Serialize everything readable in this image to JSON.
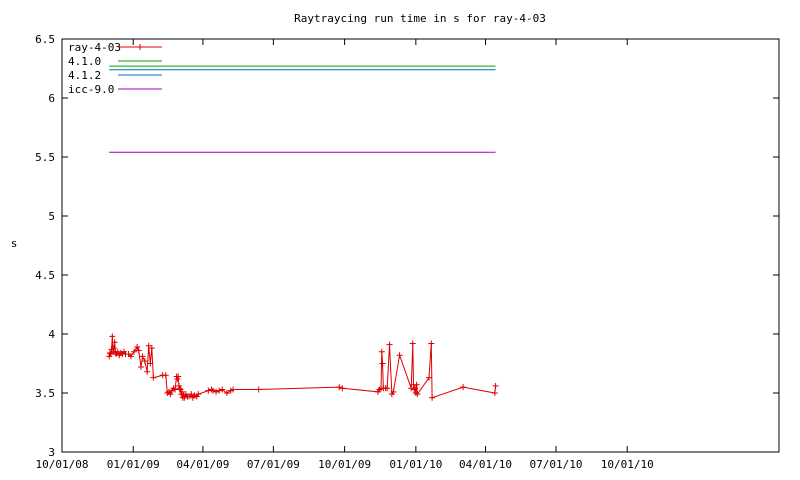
{
  "chart_data": {
    "type": "line",
    "title": "Raytraycing run time in s for ray-4-03",
    "xlabel": "",
    "ylabel": "s",
    "xlim": [
      "2008-10-01",
      "2011-04-15"
    ],
    "ylim": [
      3,
      6.5
    ],
    "grid": false,
    "legend_position": "top-left",
    "x_ticks": [
      "10/01/08",
      "01/01/09",
      "04/01/09",
      "07/01/09",
      "10/01/09",
      "01/01/10",
      "04/01/10",
      "07/01/10",
      "10/01/10"
    ],
    "x_tick_dates": [
      "2008-10-01",
      "2009-01-01",
      "2009-04-01",
      "2009-07-01",
      "2009-10-01",
      "2010-01-01",
      "2010-04-01",
      "2010-07-01",
      "2010-10-01"
    ],
    "y_ticks": [
      "3",
      "3.5",
      "4",
      "4.5",
      "5",
      "5.5",
      "6",
      "6.5"
    ],
    "series": [
      {
        "name": "ray-4-03",
        "color": "#dd0000",
        "style": "line+plus-markers",
        "points": [
          [
            "2008-12-01",
            3.81
          ],
          [
            "2008-12-02",
            3.84
          ],
          [
            "2008-12-03",
            3.83
          ],
          [
            "2008-12-04",
            3.87
          ],
          [
            "2008-12-05",
            3.98
          ],
          [
            "2008-12-06",
            3.85
          ],
          [
            "2008-12-07",
            3.88
          ],
          [
            "2008-12-08",
            3.93
          ],
          [
            "2008-12-09",
            3.84
          ],
          [
            "2008-12-10",
            3.83
          ],
          [
            "2008-12-12",
            3.85
          ],
          [
            "2008-12-14",
            3.82
          ],
          [
            "2008-12-16",
            3.84
          ],
          [
            "2008-12-18",
            3.83
          ],
          [
            "2008-12-20",
            3.85
          ],
          [
            "2008-12-22",
            3.83
          ],
          [
            "2008-12-26",
            3.83
          ],
          [
            "2008-12-29",
            3.81
          ],
          [
            "2009-01-02",
            3.85
          ],
          [
            "2009-01-06",
            3.89
          ],
          [
            "2009-01-08",
            3.86
          ],
          [
            "2009-01-11",
            3.72
          ],
          [
            "2009-01-13",
            3.81
          ],
          [
            "2009-01-16",
            3.77
          ],
          [
            "2009-01-19",
            3.68
          ],
          [
            "2009-01-21",
            3.9
          ],
          [
            "2009-01-23",
            3.75
          ],
          [
            "2009-01-25",
            3.88
          ],
          [
            "2009-01-27",
            3.63
          ],
          [
            "2009-02-08",
            3.65
          ],
          [
            "2009-02-12",
            3.65
          ],
          [
            "2009-02-14",
            3.5
          ],
          [
            "2009-02-16",
            3.51
          ],
          [
            "2009-02-18",
            3.49
          ],
          [
            "2009-02-20",
            3.52
          ],
          [
            "2009-02-22",
            3.54
          ],
          [
            "2009-02-24",
            3.53
          ],
          [
            "2009-02-26",
            3.64
          ],
          [
            "2009-02-27",
            3.62
          ],
          [
            "2009-02-28",
            3.64
          ],
          [
            "2009-03-01",
            3.56
          ],
          [
            "2009-03-02",
            3.54
          ],
          [
            "2009-03-03",
            3.53
          ],
          [
            "2009-03-04",
            3.49
          ],
          [
            "2009-03-05",
            3.51
          ],
          [
            "2009-03-06",
            3.46
          ],
          [
            "2009-03-07",
            3.48
          ],
          [
            "2009-03-08",
            3.46
          ],
          [
            "2009-03-10",
            3.49
          ],
          [
            "2009-03-12",
            3.47
          ],
          [
            "2009-03-14",
            3.47
          ],
          [
            "2009-03-17",
            3.49
          ],
          [
            "2009-03-19",
            3.46
          ],
          [
            "2009-03-21",
            3.48
          ],
          [
            "2009-03-24",
            3.47
          ],
          [
            "2009-03-26",
            3.49
          ],
          [
            "2009-04-08",
            3.52
          ],
          [
            "2009-04-12",
            3.53
          ],
          [
            "2009-04-14",
            3.52
          ],
          [
            "2009-04-18",
            3.51
          ],
          [
            "2009-04-22",
            3.52
          ],
          [
            "2009-04-26",
            3.53
          ],
          [
            "2009-05-02",
            3.5
          ],
          [
            "2009-05-07",
            3.52
          ],
          [
            "2009-05-10",
            3.53
          ],
          [
            "2009-06-12",
            3.53
          ],
          [
            "2009-09-24",
            3.55
          ],
          [
            "2009-09-28",
            3.54
          ],
          [
            "2009-11-13",
            3.51
          ],
          [
            "2009-11-15",
            3.53
          ],
          [
            "2009-11-17",
            3.54
          ],
          [
            "2009-11-18",
            3.85
          ],
          [
            "2009-11-19",
            3.75
          ],
          [
            "2009-11-20",
            3.54
          ],
          [
            "2009-11-23",
            3.54
          ],
          [
            "2009-11-25",
            3.54
          ],
          [
            "2009-11-28",
            3.91
          ],
          [
            "2009-12-01",
            3.49
          ],
          [
            "2009-12-03",
            3.51
          ],
          [
            "2009-12-11",
            3.82
          ],
          [
            "2009-12-26",
            3.54
          ],
          [
            "2009-12-28",
            3.92
          ],
          [
            "2009-12-29",
            3.57
          ],
          [
            "2009-12-30",
            3.53
          ],
          [
            "2009-12-31",
            3.54
          ],
          [
            "2010-01-01",
            3.5
          ],
          [
            "2010-01-02",
            3.57
          ],
          [
            "2010-01-03",
            3.49
          ],
          [
            "2010-01-18",
            3.63
          ],
          [
            "2010-01-21",
            3.92
          ],
          [
            "2010-01-22",
            3.46
          ],
          [
            "2010-03-03",
            3.55
          ],
          [
            "2010-04-13",
            3.5
          ],
          [
            "2010-04-14",
            3.56
          ]
        ]
      },
      {
        "name": "4.1.0",
        "color": "#00a000",
        "style": "line",
        "points": [
          [
            "2008-12-01",
            6.27
          ],
          [
            "2010-04-14",
            6.27
          ]
        ]
      },
      {
        "name": "4.1.2",
        "color": "#0070c0",
        "style": "line",
        "points": [
          [
            "2008-12-01",
            6.24
          ],
          [
            "2010-04-14",
            6.24
          ]
        ]
      },
      {
        "name": "icc-9.0",
        "color": "#a000c0",
        "style": "line",
        "points": [
          [
            "2008-12-01",
            5.54
          ],
          [
            "2010-04-14",
            5.54
          ]
        ]
      }
    ]
  }
}
